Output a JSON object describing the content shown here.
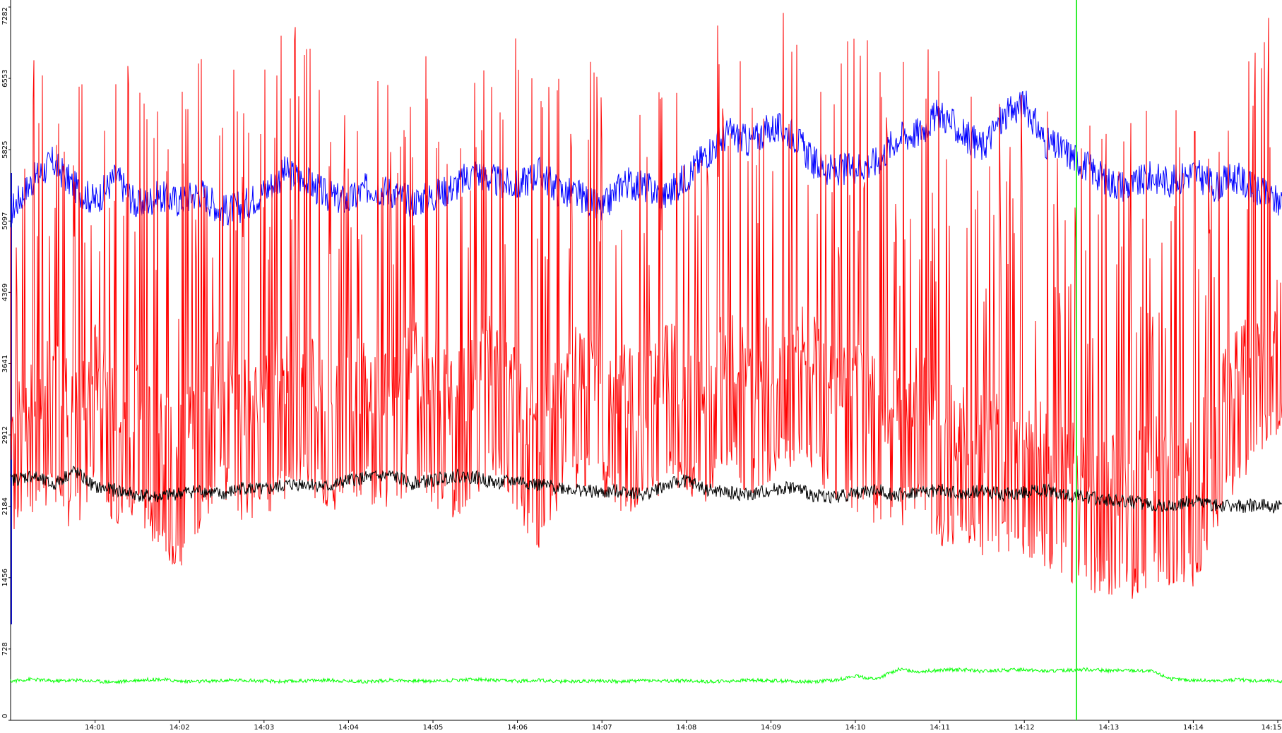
{
  "chart_data": {
    "type": "line",
    "title": "",
    "xlabel": "",
    "ylabel": "",
    "ylim": [
      0,
      7282
    ],
    "y_ticks": [
      "0",
      "728",
      "1456",
      "2184",
      "2912",
      "3641",
      "4369",
      "5097",
      "5825",
      "6553",
      "7282"
    ],
    "x_ticks": [
      "14:01",
      "14:02",
      "14:03",
      "14:04",
      "14:05",
      "14:06",
      "14:07",
      "14:08",
      "14:09",
      "14:10",
      "14:11",
      "14:12",
      "14:13",
      "14:14",
      "14:15"
    ],
    "x_range_minutes": [
      0,
      15.05
    ],
    "grid": false,
    "legend": "none",
    "cursor_time": "14:12:37",
    "series": [
      {
        "color": "#0000ff",
        "x": [
          0.0,
          0.25,
          0.5,
          0.75,
          1.0,
          1.25,
          1.5,
          1.75,
          2.0,
          2.25,
          2.5,
          2.75,
          3.0,
          3.25,
          3.5,
          3.75,
          4.0,
          4.25,
          4.5,
          4.75,
          5.0,
          5.25,
          5.5,
          5.75,
          6.0,
          6.25,
          6.5,
          6.75,
          7.0,
          7.25,
          7.5,
          7.75,
          8.0,
          8.25,
          8.5,
          8.75,
          9.0,
          9.25,
          9.5,
          9.75,
          10.0,
          10.25,
          10.5,
          10.75,
          11.0,
          11.25,
          11.5,
          11.75,
          12.0,
          12.25,
          12.5,
          12.75,
          13.0,
          13.25,
          13.5,
          13.75,
          14.0,
          14.25,
          14.5,
          14.75,
          15.0
        ],
        "values": [
          5200,
          5500,
          5700,
          5450,
          5300,
          5550,
          5250,
          5350,
          5300,
          5400,
          5200,
          5250,
          5400,
          5600,
          5500,
          5350,
          5300,
          5450,
          5400,
          5300,
          5350,
          5450,
          5600,
          5500,
          5450,
          5600,
          5400,
          5350,
          5200,
          5500,
          5450,
          5350,
          5550,
          5800,
          6000,
          5900,
          6050,
          6000,
          5700,
          5600,
          5650,
          5700,
          5950,
          6000,
          6200,
          6000,
          5850,
          6150,
          6300,
          5900,
          5800,
          5650,
          5500,
          5450,
          5550,
          5500,
          5600,
          5450,
          5550,
          5400,
          5300
        ]
      },
      {
        "color": "#ff0000",
        "x": [
          0.0,
          0.25,
          0.5,
          0.75,
          1.0,
          1.25,
          1.5,
          1.75,
          2.0,
          2.25,
          2.5,
          2.75,
          3.0,
          3.25,
          3.5,
          3.75,
          4.0,
          4.25,
          4.5,
          4.75,
          5.0,
          5.25,
          5.5,
          5.75,
          6.0,
          6.25,
          6.5,
          6.75,
          7.0,
          7.25,
          7.5,
          7.75,
          8.0,
          8.25,
          8.5,
          8.75,
          9.0,
          9.25,
          9.5,
          9.75,
          10.0,
          10.25,
          10.5,
          10.75,
          11.0,
          11.25,
          11.5,
          11.75,
          12.0,
          12.25,
          12.5,
          12.75,
          13.0,
          13.25,
          13.5,
          13.75,
          14.0,
          14.25,
          14.5,
          14.75,
          15.0
        ],
        "values": [
          3000,
          3300,
          3500,
          3200,
          3600,
          3100,
          3400,
          3000,
          2800,
          3200,
          3600,
          3300,
          3400,
          3500,
          3700,
          3300,
          3600,
          3500,
          3400,
          3700,
          3500,
          3300,
          3600,
          3800,
          3400,
          3000,
          3500,
          3700,
          3600,
          3400,
          3300,
          3700,
          3600,
          3500,
          3800,
          3600,
          3700,
          3900,
          3700,
          3500,
          3400,
          3300,
          3200,
          3500,
          3000,
          3100,
          2900,
          3000,
          2900,
          2850,
          2700,
          2600,
          2550,
          2500,
          2700,
          2650,
          2600,
          3200,
          3600,
          4000,
          4200
        ]
      },
      {
        "color": "#000000",
        "x": [
          0.0,
          0.25,
          0.5,
          0.75,
          1.0,
          1.25,
          1.5,
          1.75,
          2.0,
          2.25,
          2.5,
          2.75,
          3.0,
          3.25,
          3.5,
          3.75,
          4.0,
          4.25,
          4.5,
          4.75,
          5.0,
          5.25,
          5.5,
          5.75,
          6.0,
          6.25,
          6.5,
          6.75,
          7.0,
          7.25,
          7.5,
          7.75,
          8.0,
          8.25,
          8.5,
          8.75,
          9.0,
          9.25,
          9.5,
          9.75,
          10.0,
          10.25,
          10.5,
          10.75,
          11.0,
          11.25,
          11.5,
          11.75,
          12.0,
          12.25,
          12.5,
          12.75,
          13.0,
          13.25,
          13.5,
          13.75,
          14.0,
          14.25,
          14.5,
          14.75,
          15.0
        ],
        "values": [
          2450,
          2500,
          2400,
          2550,
          2380,
          2350,
          2300,
          2280,
          2320,
          2350,
          2300,
          2380,
          2350,
          2400,
          2420,
          2380,
          2450,
          2480,
          2500,
          2420,
          2450,
          2500,
          2480,
          2420,
          2450,
          2400,
          2380,
          2350,
          2320,
          2350,
          2300,
          2400,
          2450,
          2350,
          2320,
          2300,
          2350,
          2380,
          2300,
          2280,
          2320,
          2350,
          2300,
          2330,
          2350,
          2300,
          2350,
          2300,
          2330,
          2350,
          2300,
          2280,
          2250,
          2230,
          2200,
          2180,
          2250,
          2200,
          2180,
          2200,
          2180
        ]
      },
      {
        "color": "#00ff00",
        "x": [
          0.0,
          0.25,
          0.5,
          0.75,
          1.0,
          1.25,
          1.5,
          1.75,
          2.0,
          2.25,
          2.5,
          2.75,
          3.0,
          3.25,
          3.5,
          3.75,
          4.0,
          4.25,
          4.5,
          4.75,
          5.0,
          5.25,
          5.5,
          5.75,
          6.0,
          6.25,
          6.5,
          6.75,
          7.0,
          7.25,
          7.5,
          7.75,
          8.0,
          8.25,
          8.5,
          8.75,
          9.0,
          9.25,
          9.5,
          9.75,
          10.0,
          10.25,
          10.5,
          10.75,
          11.0,
          11.25,
          11.5,
          11.75,
          12.0,
          12.25,
          12.5,
          12.75,
          13.0,
          13.25,
          13.5,
          13.75,
          14.0,
          14.25,
          14.5,
          14.75,
          15.0
        ],
        "values": [
          400,
          420,
          400,
          410,
          400,
          390,
          410,
          420,
          400,
          395,
          405,
          410,
          400,
          395,
          405,
          410,
          400,
          395,
          410,
          405,
          400,
          410,
          420,
          405,
          400,
          410,
          395,
          400,
          405,
          395,
          410,
          400,
          405,
          395,
          400,
          410,
          405,
          400,
          395,
          410,
          450,
          420,
          520,
          500,
          510,
          520,
          500,
          510,
          520,
          500,
          510,
          520,
          505,
          510,
          500,
          420,
          410,
          400,
          415,
          405,
          400
        ]
      }
    ]
  }
}
